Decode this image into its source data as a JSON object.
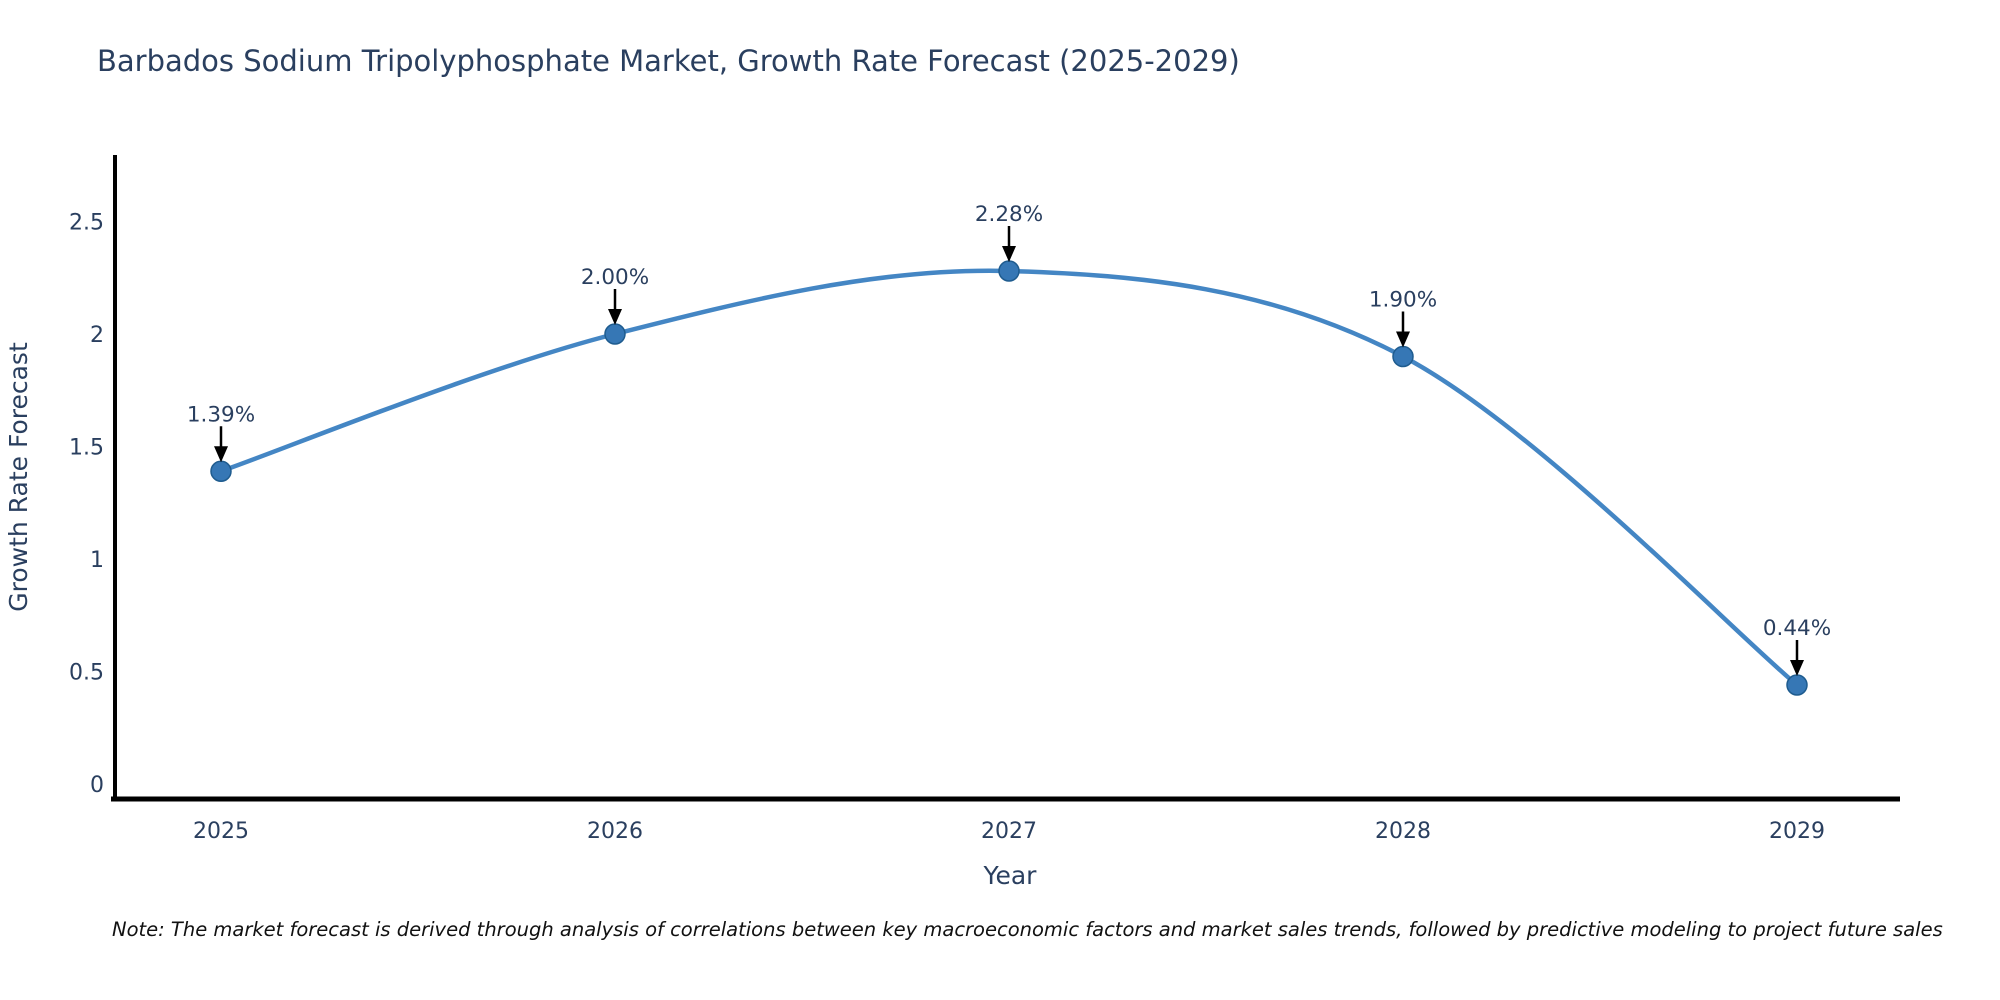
{
  "page": {
    "title": "Barbados Sodium Tripolyphosphate Market, Growth Rate Forecast (2025-2029)",
    "note": "Note: The market forecast is derived through analysis of correlations between key macroeconomic factors and market sales trends, followed by predictive modeling to project future sales"
  },
  "chart_data": {
    "type": "line",
    "title": "Barbados Sodium Tripolyphosphate Market, Growth Rate Forecast (2025-2029)",
    "xlabel": "Year",
    "ylabel": "Growth Rate Forecast",
    "categories": [
      "2025",
      "2026",
      "2027",
      "2028",
      "2029"
    ],
    "series": [
      {
        "name": "Growth Rate Forecast",
        "values": [
          1.39,
          2.0,
          2.28,
          1.9,
          0.44
        ]
      }
    ],
    "point_labels": [
      "1.39%",
      "2.00%",
      "2.28%",
      "1.90%",
      "0.44%"
    ],
    "yticks": [
      "0",
      "0.5",
      "1",
      "1.5",
      "2",
      "2.5"
    ],
    "ytick_values": [
      0,
      0.5,
      1,
      1.5,
      2,
      2.5
    ],
    "ylim": [
      0,
      2.8
    ],
    "line_shape": "spline",
    "markers": true,
    "annotations_arrows": true,
    "grid": false,
    "legend": "none",
    "colors": {
      "line": "#4486c4",
      "marker_fill": "#3677b5",
      "marker_stroke": "#1f5c8f",
      "axis_line": "#000000",
      "arrow": "#000000",
      "text": "#2a3f5f",
      "note_text": "#111111",
      "background": "#ffffff"
    }
  }
}
